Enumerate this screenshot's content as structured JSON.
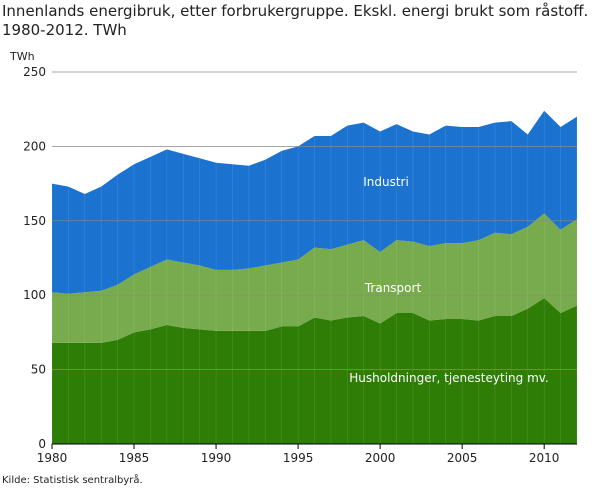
{
  "chart_data": {
    "type": "stacked_area",
    "title": "Innenlands energibruk, etter forbrukergruppe. Ekskl. energi brukt som råstoff. 1980-2012. TWh",
    "y_axis_label": "TWh",
    "source": "Kilde: Statistisk sentralbyrå.",
    "x": [
      1980,
      1981,
      1982,
      1983,
      1984,
      1985,
      1986,
      1987,
      1988,
      1989,
      1990,
      1991,
      1992,
      1993,
      1994,
      1995,
      1996,
      1997,
      1998,
      1999,
      2000,
      2001,
      2002,
      2003,
      2004,
      2005,
      2006,
      2007,
      2008,
      2009,
      2010,
      2011,
      2012
    ],
    "series": [
      {
        "name": "Husholdninger, tjenesteyting mv.",
        "color": "#2e7d07",
        "values": [
          68,
          68,
          68,
          68,
          70,
          75,
          77,
          80,
          78,
          77,
          76,
          76,
          76,
          76,
          79,
          79,
          85,
          83,
          85,
          86,
          81,
          88,
          88,
          83,
          84,
          84,
          83,
          86,
          86,
          91,
          98,
          88,
          93
        ]
      },
      {
        "name": "Transport",
        "color": "#77ab4d",
        "values": [
          34,
          33,
          34,
          35,
          37,
          39,
          42,
          44,
          44,
          43,
          41,
          41,
          42,
          44,
          43,
          45,
          47,
          48,
          49,
          51,
          48,
          49,
          48,
          50,
          51,
          51,
          54,
          56,
          55,
          55,
          57,
          56,
          58
        ]
      },
      {
        "name": "Industri",
        "color": "#1c72cf",
        "values": [
          73,
          72,
          66,
          70,
          74,
          74,
          74,
          74,
          73,
          72,
          72,
          71,
          69,
          71,
          75,
          76,
          75,
          76,
          80,
          79,
          81,
          78,
          74,
          75,
          79,
          78,
          76,
          74,
          76,
          62,
          69,
          69,
          69
        ]
      }
    ],
    "xlim": [
      1980,
      2012
    ],
    "xticks": [
      1980,
      1985,
      1990,
      1995,
      2000,
      2005,
      2010
    ],
    "ylim": [
      0,
      250
    ],
    "yticks": [
      0,
      50,
      100,
      150,
      200,
      250
    ],
    "grid": true
  }
}
